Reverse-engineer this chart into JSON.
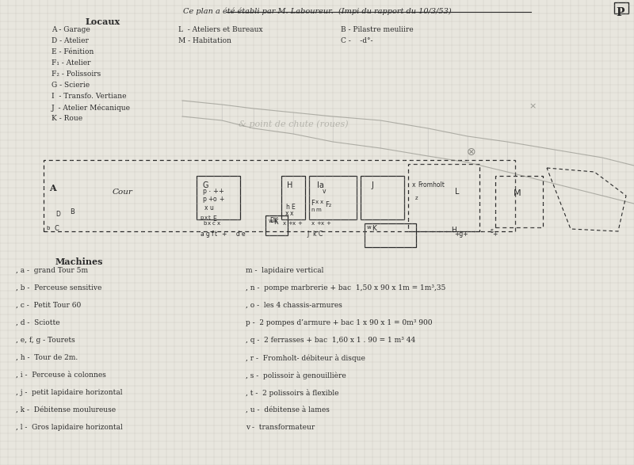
{
  "bg_color": "#d8d8d0",
  "paper_color": "#e8e6de",
  "grid_color": "#c0bdb5",
  "ink_color": "#2a2a2a",
  "light_ink": "#5a5a5a",
  "title": "Ce plan a été établi par M. Laboureur.  (Impi du rapport du 10/3/53)",
  "page_label": "P",
  "locaux_title": "Locaux",
  "locaux_left": [
    "A - Garage",
    "D - Atelier",
    "E - Fénition",
    "F₁ - Atelier",
    "F₂ - Polissoirs",
    "G - Scierie",
    "I  - Transfo. Vertiane",
    "J  - Atelier Mécanique",
    "K - Roue"
  ],
  "locaux_mid": [
    "L  - Ateliers et Bureaux",
    "M - Habitation"
  ],
  "locaux_right": [
    "B - Pilastre meuliire",
    "C -    -d°-"
  ],
  "machines_title": "Machines",
  "machines_left": [
    ", a -  grand Tour 5m",
    ", b -  Perceuse sensitive",
    ", c -  Petit Tour 60",
    ", d -  Sciotte",
    ", e, f, g - Tourets",
    ", h -  Tour de 2m.",
    ", i -  Perceuse à colonnes",
    ", j -  petit lapidaire horizontal",
    ", k -  Débitense moulureuse",
    ", l -  Gros lapidaire horizontal"
  ],
  "machines_right": [
    "m -  lapidaire vertical",
    ", n -  pompe marbrerie + bac  1,50 x 90 x 1m = 1m³,35",
    ", o -  les 4 chassis-armures",
    "p -  2 pompes d’armure + bac 1 x 90 x 1 = 0m³ 900",
    ", q -  2 ferrasses + bac  1,60 x 1 . 90 = 1 m³ 44",
    ", r -  Fromholt- débiteur à disque",
    ", s -  polissoir à genouillière",
    ", t -  2 polissoirs à flexible",
    ", u -  débitense à lames",
    "v -  transformateur"
  ]
}
